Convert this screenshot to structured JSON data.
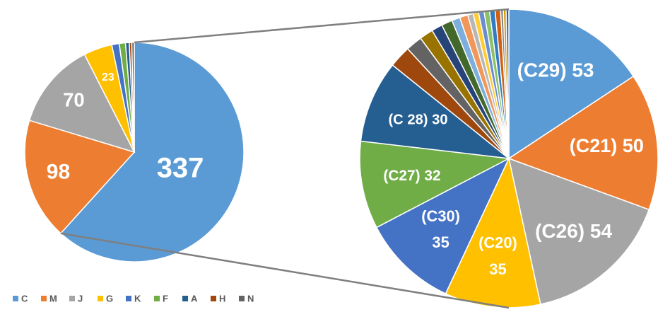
{
  "chart_data": [
    {
      "type": "pie",
      "categories": [
        "C",
        "M",
        "J",
        "G",
        "K",
        "F",
        "A",
        "H",
        "N"
      ],
      "values": [
        337,
        98,
        70,
        23,
        6,
        5,
        3,
        2,
        2
      ],
      "value_labels": [
        "337",
        "98",
        "70",
        "23",
        null,
        null,
        null,
        null,
        null
      ],
      "colors": [
        "#5b9bd5",
        "#ed7d31",
        "#a5a5a5",
        "#ffc000",
        "#4472c4",
        "#70ad47",
        "#255e91",
        "#9e480e",
        "#636363"
      ],
      "legend": "bottom-left"
    },
    {
      "type": "pie",
      "categories": [
        "(C29)",
        "(C21)",
        "(C26)",
        "(C20)",
        "(C30)",
        "(C27)",
        "(C 28)",
        null,
        null,
        null,
        null,
        null,
        null,
        null,
        null,
        null,
        null,
        null,
        null,
        null,
        null,
        null,
        null
      ],
      "values": [
        53,
        50,
        54,
        35,
        35,
        32,
        30,
        8,
        6,
        5,
        4,
        4,
        3,
        3,
        2,
        2,
        2,
        2,
        2,
        2,
        1,
        1,
        1
      ],
      "colors": [
        "#5b9bd5",
        "#ed7d31",
        "#a5a5a5",
        "#ffc000",
        "#4472c4",
        "#70ad47",
        "#255e91",
        "#9e480e",
        "#636363",
        "#997300",
        "#264478",
        "#43682b",
        "#7cafdd",
        "#f1975a",
        "#b7b7b7",
        "#ffcd33",
        "#698ed0",
        "#8cc168",
        "#327dc2",
        "#d26012",
        "#848484",
        "#cc9a00",
        "#335aa1"
      ]
    }
  ]
}
